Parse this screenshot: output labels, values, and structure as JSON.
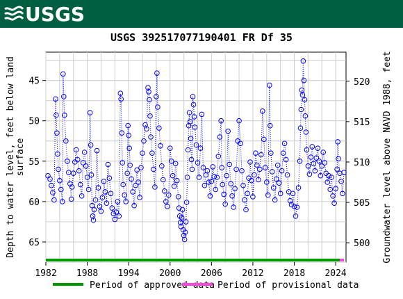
{
  "header": {
    "logo_text": "USGS"
  },
  "chart_data": {
    "type": "scatter",
    "title": "USGS 392517077190401 FR Df  35",
    "ylabel_left": "Depth to water level, feet below land surface",
    "ylabel_left_lines": [
      "Depth to water level, feet below land",
      "surface"
    ],
    "ylabel_right": "Groundwater level above NAVD 1988, feet",
    "x_ticks": [
      "1982",
      "1988",
      "1994",
      "2000",
      "2006",
      "2012",
      "2018",
      "2024"
    ],
    "xlim": [
      1982,
      2025.5
    ],
    "y_left_ticks": [
      "45",
      "50",
      "55",
      "60",
      "65"
    ],
    "y_left_lim": [
      41.5,
      67.5
    ],
    "y_left_inverted": true,
    "y_right_ticks": [
      "500",
      "505",
      "510",
      "515",
      "520"
    ],
    "grid": true,
    "series_style": {
      "marker": "circle-open",
      "color": "#0000ff",
      "line": "dotted"
    },
    "approved_color": "#009900",
    "provisional_color": "#ff44dd",
    "approved_range": [
      1982,
      2024.6
    ],
    "provisional_range": [
      2024.6,
      2025.2
    ],
    "legend": [
      {
        "label": "Period of approved data",
        "color": "#009900"
      },
      {
        "label": "Period of provisional data",
        "color": "#ff44dd"
      }
    ],
    "points": [
      [
        1982.3,
        56.8
      ],
      [
        1982.6,
        57.2
      ],
      [
        1982.8,
        58.0
      ],
      [
        1983.0,
        58.9
      ],
      [
        1983.2,
        59.8
      ],
      [
        1983.4,
        47.3
      ],
      [
        1983.5,
        49.3
      ],
      [
        1983.6,
        51.5
      ],
      [
        1983.7,
        54.1
      ],
      [
        1983.8,
        56.0
      ],
      [
        1984.0,
        57.4
      ],
      [
        1984.2,
        58.5
      ],
      [
        1984.4,
        60.0
      ],
      [
        1984.5,
        44.2
      ],
      [
        1984.6,
        47.0
      ],
      [
        1984.7,
        49.3
      ],
      [
        1984.9,
        52.5
      ],
      [
        1985.1,
        55.0
      ],
      [
        1985.3,
        56.4
      ],
      [
        1985.5,
        57.8
      ],
      [
        1985.7,
        59.7
      ],
      [
        1985.8,
        58.2
      ],
      [
        1986.0,
        56.5
      ],
      [
        1986.2,
        55.1
      ],
      [
        1986.4,
        53.6
      ],
      [
        1986.6,
        54.8
      ],
      [
        1986.8,
        56.2
      ],
      [
        1987.0,
        57.9
      ],
      [
        1987.2,
        59.3
      ],
      [
        1987.4,
        55.2
      ],
      [
        1987.6,
        53.9
      ],
      [
        1987.8,
        55.6
      ],
      [
        1988.0,
        57.0
      ],
      [
        1988.2,
        58.5
      ],
      [
        1988.4,
        49.0
      ],
      [
        1988.5,
        53.0
      ],
      [
        1988.6,
        56.7
      ],
      [
        1988.7,
        60.5
      ],
      [
        1988.8,
        61.8
      ],
      [
        1988.9,
        62.3
      ],
      [
        1989.0,
        61.0
      ],
      [
        1989.2,
        59.8
      ],
      [
        1989.4,
        53.7
      ],
      [
        1989.6,
        58.3
      ],
      [
        1989.8,
        60.6
      ],
      [
        1990.0,
        61.2
      ],
      [
        1990.2,
        59.5
      ],
      [
        1990.4,
        57.5
      ],
      [
        1990.6,
        58.8
      ],
      [
        1990.8,
        60.2
      ],
      [
        1991.0,
        55.4
      ],
      [
        1991.2,
        57.1
      ],
      [
        1991.4,
        59.0
      ],
      [
        1991.6,
        60.8
      ],
      [
        1991.8,
        61.5
      ],
      [
        1992.0,
        62.2
      ],
      [
        1992.2,
        61.3
      ],
      [
        1992.4,
        60.0
      ],
      [
        1992.6,
        61.8
      ],
      [
        1992.8,
        46.6
      ],
      [
        1992.9,
        47.3
      ],
      [
        1993.0,
        51.5
      ],
      [
        1993.1,
        55.2
      ],
      [
        1993.2,
        57.9
      ],
      [
        1993.4,
        59.2
      ],
      [
        1993.6,
        60.0
      ],
      [
        1993.8,
        56.5
      ],
      [
        1993.9,
        50.6
      ],
      [
        1994.0,
        51.8
      ],
      [
        1994.1,
        53.4
      ],
      [
        1994.2,
        55.5
      ],
      [
        1994.4,
        57.2
      ],
      [
        1994.6,
        58.8
      ],
      [
        1994.8,
        60.5
      ],
      [
        1995.0,
        58.0
      ],
      [
        1995.2,
        56.1
      ],
      [
        1995.4,
        57.6
      ],
      [
        1995.6,
        59.5
      ],
      [
        1995.8,
        55.8
      ],
      [
        1996.0,
        54.0
      ],
      [
        1996.2,
        52.5
      ],
      [
        1996.4,
        50.5
      ],
      [
        1996.6,
        51.0
      ],
      [
        1996.8,
        45.9
      ],
      [
        1996.9,
        46.4
      ],
      [
        1997.0,
        47.4
      ],
      [
        1997.1,
        49.4
      ],
      [
        1997.2,
        52.0
      ],
      [
        1997.4,
        54.0
      ],
      [
        1997.6,
        56.0
      ],
      [
        1997.8,
        58.2
      ],
      [
        1998.0,
        47.0
      ],
      [
        1998.1,
        44.1
      ],
      [
        1998.2,
        48.3
      ],
      [
        1998.4,
        50.9
      ],
      [
        1998.6,
        53.1
      ],
      [
        1998.8,
        55.6
      ],
      [
        1999.0,
        57.3
      ],
      [
        1999.2,
        58.7
      ],
      [
        1999.4,
        60.0
      ],
      [
        1999.6,
        60.6
      ],
      [
        1999.8,
        59.2
      ],
      [
        2000.0,
        53.4
      ],
      [
        2000.2,
        55.0
      ],
      [
        2000.4,
        56.8
      ],
      [
        2000.6,
        58.1
      ],
      [
        2000.8,
        55.3
      ],
      [
        2001.0,
        57.4
      ],
      [
        2001.2,
        59.4
      ],
      [
        2001.3,
        60.8
      ],
      [
        2001.4,
        61.8
      ],
      [
        2001.5,
        62.6
      ],
      [
        2001.6,
        63.1
      ],
      [
        2001.7,
        62.0
      ],
      [
        2001.8,
        61.0
      ],
      [
        2001.9,
        63.5
      ],
      [
        2002.0,
        64.2
      ],
      [
        2002.1,
        64.7
      ],
      [
        2002.2,
        63.8
      ],
      [
        2002.3,
        62.5
      ],
      [
        2002.4,
        60.1
      ],
      [
        2002.5,
        57.0
      ],
      [
        2002.6,
        53.6
      ],
      [
        2002.7,
        50.6
      ],
      [
        2002.8,
        49.0
      ],
      [
        2002.9,
        50.1
      ],
      [
        2003.0,
        52.2
      ],
      [
        2003.1,
        54.8
      ],
      [
        2003.2,
        56.0
      ],
      [
        2003.3,
        47.0
      ],
      [
        2003.4,
        48.0
      ],
      [
        2003.5,
        49.5
      ],
      [
        2003.6,
        50.8
      ],
      [
        2003.8,
        53.0
      ],
      [
        2004.0,
        55.2
      ],
      [
        2004.2,
        57.0
      ],
      [
        2004.4,
        53.4
      ],
      [
        2004.6,
        49.2
      ],
      [
        2004.8,
        55.8
      ],
      [
        2005.0,
        58.0
      ],
      [
        2005.2,
        56.7
      ],
      [
        2005.4,
        56.2
      ],
      [
        2005.6,
        57.6
      ],
      [
        2005.8,
        59.3
      ],
      [
        2006.0,
        57.5
      ],
      [
        2006.2,
        55.7
      ],
      [
        2006.4,
        56.9
      ],
      [
        2006.6,
        58.5
      ],
      [
        2006.8,
        57.0
      ],
      [
        2007.0,
        54.4
      ],
      [
        2007.2,
        52.0
      ],
      [
        2007.4,
        50.0
      ],
      [
        2007.5,
        55.8
      ],
      [
        2007.6,
        57.9
      ],
      [
        2007.8,
        59.1
      ],
      [
        2008.0,
        60.3
      ],
      [
        2008.2,
        56.8
      ],
      [
        2008.4,
        51.3
      ],
      [
        2008.6,
        55.4
      ],
      [
        2008.8,
        57.8
      ],
      [
        2009.0,
        59.3
      ],
      [
        2009.2,
        60.7
      ],
      [
        2009.4,
        58.4
      ],
      [
        2009.6,
        56.0
      ],
      [
        2009.8,
        52.5
      ],
      [
        2010.0,
        50.0
      ],
      [
        2010.2,
        52.8
      ],
      [
        2010.4,
        56.2
      ],
      [
        2010.6,
        58.0
      ],
      [
        2010.8,
        59.8
      ],
      [
        2011.0,
        61.0
      ],
      [
        2011.2,
        59.0
      ],
      [
        2011.4,
        57.1
      ],
      [
        2011.6,
        55.1
      ],
      [
        2011.8,
        57.4
      ],
      [
        2012.0,
        59.4
      ],
      [
        2012.2,
        56.7
      ],
      [
        2012.4,
        54.0
      ],
      [
        2012.6,
        55.5
      ],
      [
        2012.8,
        57.3
      ],
      [
        2013.0,
        56.0
      ],
      [
        2013.2,
        54.2
      ],
      [
        2013.4,
        48.8
      ],
      [
        2013.6,
        52.3
      ],
      [
        2013.8,
        55.8
      ],
      [
        2014.0,
        57.6
      ],
      [
        2014.2,
        59.2
      ],
      [
        2014.4,
        45.6
      ],
      [
        2014.5,
        50.6
      ],
      [
        2014.6,
        54.0
      ],
      [
        2014.8,
        56.3
      ],
      [
        2015.0,
        58.3
      ],
      [
        2015.2,
        59.8
      ],
      [
        2015.4,
        57.2
      ],
      [
        2015.6,
        55.5
      ],
      [
        2015.8,
        57.7
      ],
      [
        2016.0,
        59.0
      ],
      [
        2016.2,
        56.2
      ],
      [
        2016.4,
        54.0
      ],
      [
        2016.6,
        52.8
      ],
      [
        2016.8,
        54.8
      ],
      [
        2017.0,
        56.7
      ],
      [
        2017.2,
        58.8
      ],
      [
        2017.4,
        59.9
      ],
      [
        2017.6,
        60.4
      ],
      [
        2017.8,
        59.0
      ],
      [
        2018.0,
        60.6
      ],
      [
        2018.2,
        61.8
      ],
      [
        2018.4,
        60.7
      ],
      [
        2018.6,
        58.3
      ],
      [
        2018.8,
        55.0
      ],
      [
        2018.9,
        50.9
      ],
      [
        2019.0,
        48.6
      ],
      [
        2019.1,
        46.2
      ],
      [
        2019.2,
        46.8
      ],
      [
        2019.3,
        42.6
      ],
      [
        2019.4,
        45.0
      ],
      [
        2019.5,
        47.4
      ],
      [
        2019.6,
        49.4
      ],
      [
        2019.7,
        51.4
      ],
      [
        2019.8,
        53.6
      ],
      [
        2020.0,
        55.6
      ],
      [
        2020.2,
        56.6
      ],
      [
        2020.4,
        54.5
      ],
      [
        2020.6,
        53.2
      ],
      [
        2020.8,
        55.3
      ],
      [
        2021.0,
        56.2
      ],
      [
        2021.2,
        54.6
      ],
      [
        2021.4,
        53.4
      ],
      [
        2021.6,
        55.0
      ],
      [
        2021.8,
        56.8
      ],
      [
        2022.0,
        55.6
      ],
      [
        2022.2,
        53.9
      ],
      [
        2022.4,
        55.2
      ],
      [
        2022.6,
        56.5
      ],
      [
        2022.8,
        57.6
      ],
      [
        2023.0,
        56.8
      ],
      [
        2023.2,
        58.5
      ],
      [
        2023.4,
        57.0
      ],
      [
        2023.6,
        59.3
      ],
      [
        2023.8,
        60.2
      ],
      [
        2024.0,
        58.4
      ],
      [
        2024.2,
        56.0
      ],
      [
        2024.3,
        52.6
      ],
      [
        2024.4,
        54.7
      ],
      [
        2024.6,
        56.5
      ],
      [
        2024.8,
        57.5
      ],
      [
        2025.0,
        59.0
      ],
      [
        2025.2,
        56.4
      ]
    ]
  }
}
